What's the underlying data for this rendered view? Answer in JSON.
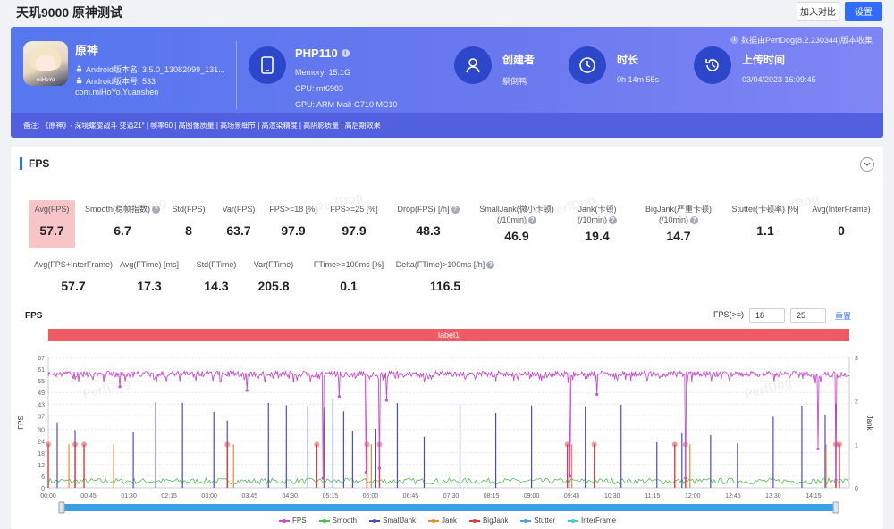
{
  "page": {
    "title": "天玑9000 原神测试",
    "compare_label": "加入对比",
    "settings_label": "设置"
  },
  "app": {
    "name": "原神",
    "icon_text": "miHoYo",
    "version_name": "Android版本名: 3.5.0_13082099_131...",
    "version_code": "Android版本号: 533",
    "package": "com.miHoYo.Yuanshen"
  },
  "device": {
    "name": "PHP110",
    "memory": "Memory: 15.1G",
    "cpu": "CPU: mt6983",
    "gpu": "GPU: ARM Mali-G710 MC10"
  },
  "creator": {
    "label": "创建者",
    "value": "躺倒鸭"
  },
  "duration": {
    "label": "时长",
    "value": "0h 14m 55s"
  },
  "upload": {
    "label": "上传时间",
    "value": "03/04/2023 16:09:45"
  },
  "source_note": "数据由PerfDog(8.2.230344)版本收集",
  "notes": "备注: 《原神》- 深境螺旋战斗 变逼21° | 帧率60 | 高图像质量 | 高场景细节 | 高渲染精度 | 高阴影质量 | 高后期效果",
  "fps_card": {
    "title": "FPS",
    "metrics_row1": [
      {
        "label": "Avg(FPS)",
        "label2": "",
        "value": "57.7",
        "help": false
      },
      {
        "label": "Smooth(稳帧指数)",
        "label2": "",
        "value": "6.7",
        "help": true
      },
      {
        "label": "Std(FPS)",
        "label2": "",
        "value": "8",
        "help": false
      },
      {
        "label": "Var(FPS)",
        "label2": "",
        "value": "63.7",
        "help": false
      },
      {
        "label": "FPS>=18 [%]",
        "label2": "",
        "value": "97.9",
        "help": false
      },
      {
        "label": "FPS>=25 [%]",
        "label2": "",
        "value": "97.9",
        "help": false
      },
      {
        "label": "Drop(FPS) [/h]",
        "label2": "",
        "value": "48.3",
        "help": true
      },
      {
        "label": "SmallJank(微小卡顿)",
        "label2": "(/10min)",
        "value": "46.9",
        "help": true
      },
      {
        "label": "Jank(卡顿)",
        "label2": "(/10min)",
        "value": "19.4",
        "help": true
      },
      {
        "label": "BigJank(严重卡顿)",
        "label2": "(/10min)",
        "value": "14.7",
        "help": true
      },
      {
        "label": "Stutter(卡顿率) [%]",
        "label2": "",
        "value": "1.1",
        "help": false
      },
      {
        "label": "Avg(InterFrame)",
        "label2": "",
        "value": "0",
        "help": false
      }
    ],
    "metrics_row2": [
      {
        "label": "Avg(FPS+InterFrame)",
        "value": "57.7",
        "help": false
      },
      {
        "label": "Avg(FTime) [ms]",
        "value": "17.3",
        "help": false
      },
      {
        "label": "Std(FTime)",
        "value": "14.3",
        "help": false
      },
      {
        "label": "Var(FTime)",
        "value": "205.8",
        "help": false
      },
      {
        "label": "FTime>=100ms [%]",
        "value": "0.1",
        "help": false
      },
      {
        "label": "Delta(FTime)>100ms [/h]",
        "value": "116.5",
        "help": true
      }
    ],
    "chart_title": "FPS",
    "fps_ge_label": "FPS(>=)",
    "fps_threshold_1": "18",
    "fps_threshold_2": "25",
    "reset_label": "重置",
    "label_band": "label1",
    "watermark": "PerfDog"
  },
  "chart_data": {
    "type": "line",
    "y_axis_label": "FPS",
    "y2_axis_label": "Jank",
    "yticks": [
      "0",
      "6",
      "12",
      "18",
      "24",
      "30",
      "37",
      "43",
      "49",
      "55",
      "61",
      "67"
    ],
    "y2ticks": [
      "0",
      "1",
      "2",
      "3"
    ],
    "ylim": [
      0,
      67
    ],
    "y2lim": [
      0,
      3
    ],
    "x_ticks": [
      "00:00",
      "00:45",
      "01:30",
      "02:15",
      "03:00",
      "03:45",
      "04:30",
      "05:15",
      "06:00",
      "06:45",
      "07:30",
      "08:15",
      "09:00",
      "09:45",
      "10:30",
      "11:15",
      "12:00",
      "12:45",
      "13:30",
      "14:15"
    ],
    "x_range_seconds": [
      0,
      895
    ],
    "series": [
      {
        "name": "FPS",
        "color": "#c74fc9",
        "baseline": 60,
        "dips": [
          [
            80,
            52
          ],
          [
            222,
            50
          ],
          [
            307,
            5
          ],
          [
            325,
            47
          ],
          [
            355,
            8
          ],
          [
            370,
            10
          ],
          [
            378,
            45
          ],
          [
            583,
            6
          ],
          [
            613,
            48
          ],
          [
            712,
            5
          ],
          [
            860,
            20
          ],
          [
            880,
            4
          ]
        ]
      },
      {
        "name": "Smooth",
        "color": "#4cbf4c",
        "baseline": 2
      },
      {
        "name": "SmallJank",
        "color": "#4b4bc8",
        "spikes": [
          10,
          30,
          95,
          120,
          150,
          185,
          200,
          246,
          266,
          290,
          308,
          318,
          330,
          340,
          356,
          366,
          390,
          420,
          460,
          500,
          540,
          582,
          600,
          640,
          680,
          708,
          740,
          770,
          810,
          842,
          868,
          880
        ]
      },
      {
        "name": "Jank",
        "color": "#e8892e",
        "spikes": [
          22,
          72,
          206,
          308,
          360,
          584,
          716,
          868
        ]
      },
      {
        "name": "BigJank",
        "color": "#e33b3b",
        "spikes": [
          0,
          30,
          40,
          200,
          300,
          356,
          370,
          580,
          610,
          700,
          712,
          880,
          884
        ]
      },
      {
        "name": "Stutter",
        "color": "#4aa3e8"
      },
      {
        "name": "InterFrame",
        "color": "#46c6d8"
      }
    ]
  }
}
